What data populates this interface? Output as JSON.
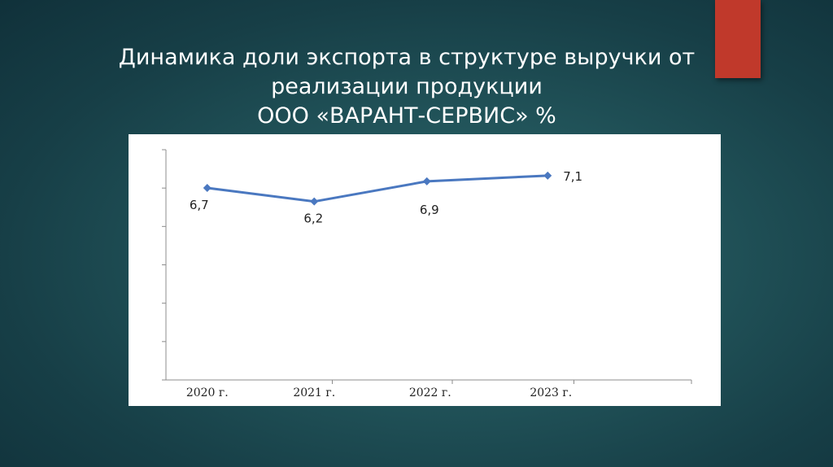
{
  "slide": {
    "title_lines": [
      "Динамика доли экспорта в структуре выручки от",
      "реализации продукции",
      "ООО «ВАРАНТ-СЕРВИС» %"
    ],
    "accent_color": "#c0392b",
    "background_color": "#1f4f56"
  },
  "chart_data": {
    "type": "line",
    "title": "",
    "xlabel": "",
    "ylabel": "",
    "categories": [
      "2020 г.",
      "2021 г.",
      "2022 г.",
      "2023 г."
    ],
    "series": [
      {
        "values": [
          6.7,
          6.2,
          6.9,
          7.1
        ],
        "labels": [
          "6,7",
          "6,2",
          "6,9",
          "7,1"
        ],
        "color": "#4a78c0",
        "marker": "diamond"
      }
    ],
    "ylim": [
      0,
      8
    ],
    "y_tick_labels_visible": false,
    "grid": false,
    "legend": "none"
  }
}
